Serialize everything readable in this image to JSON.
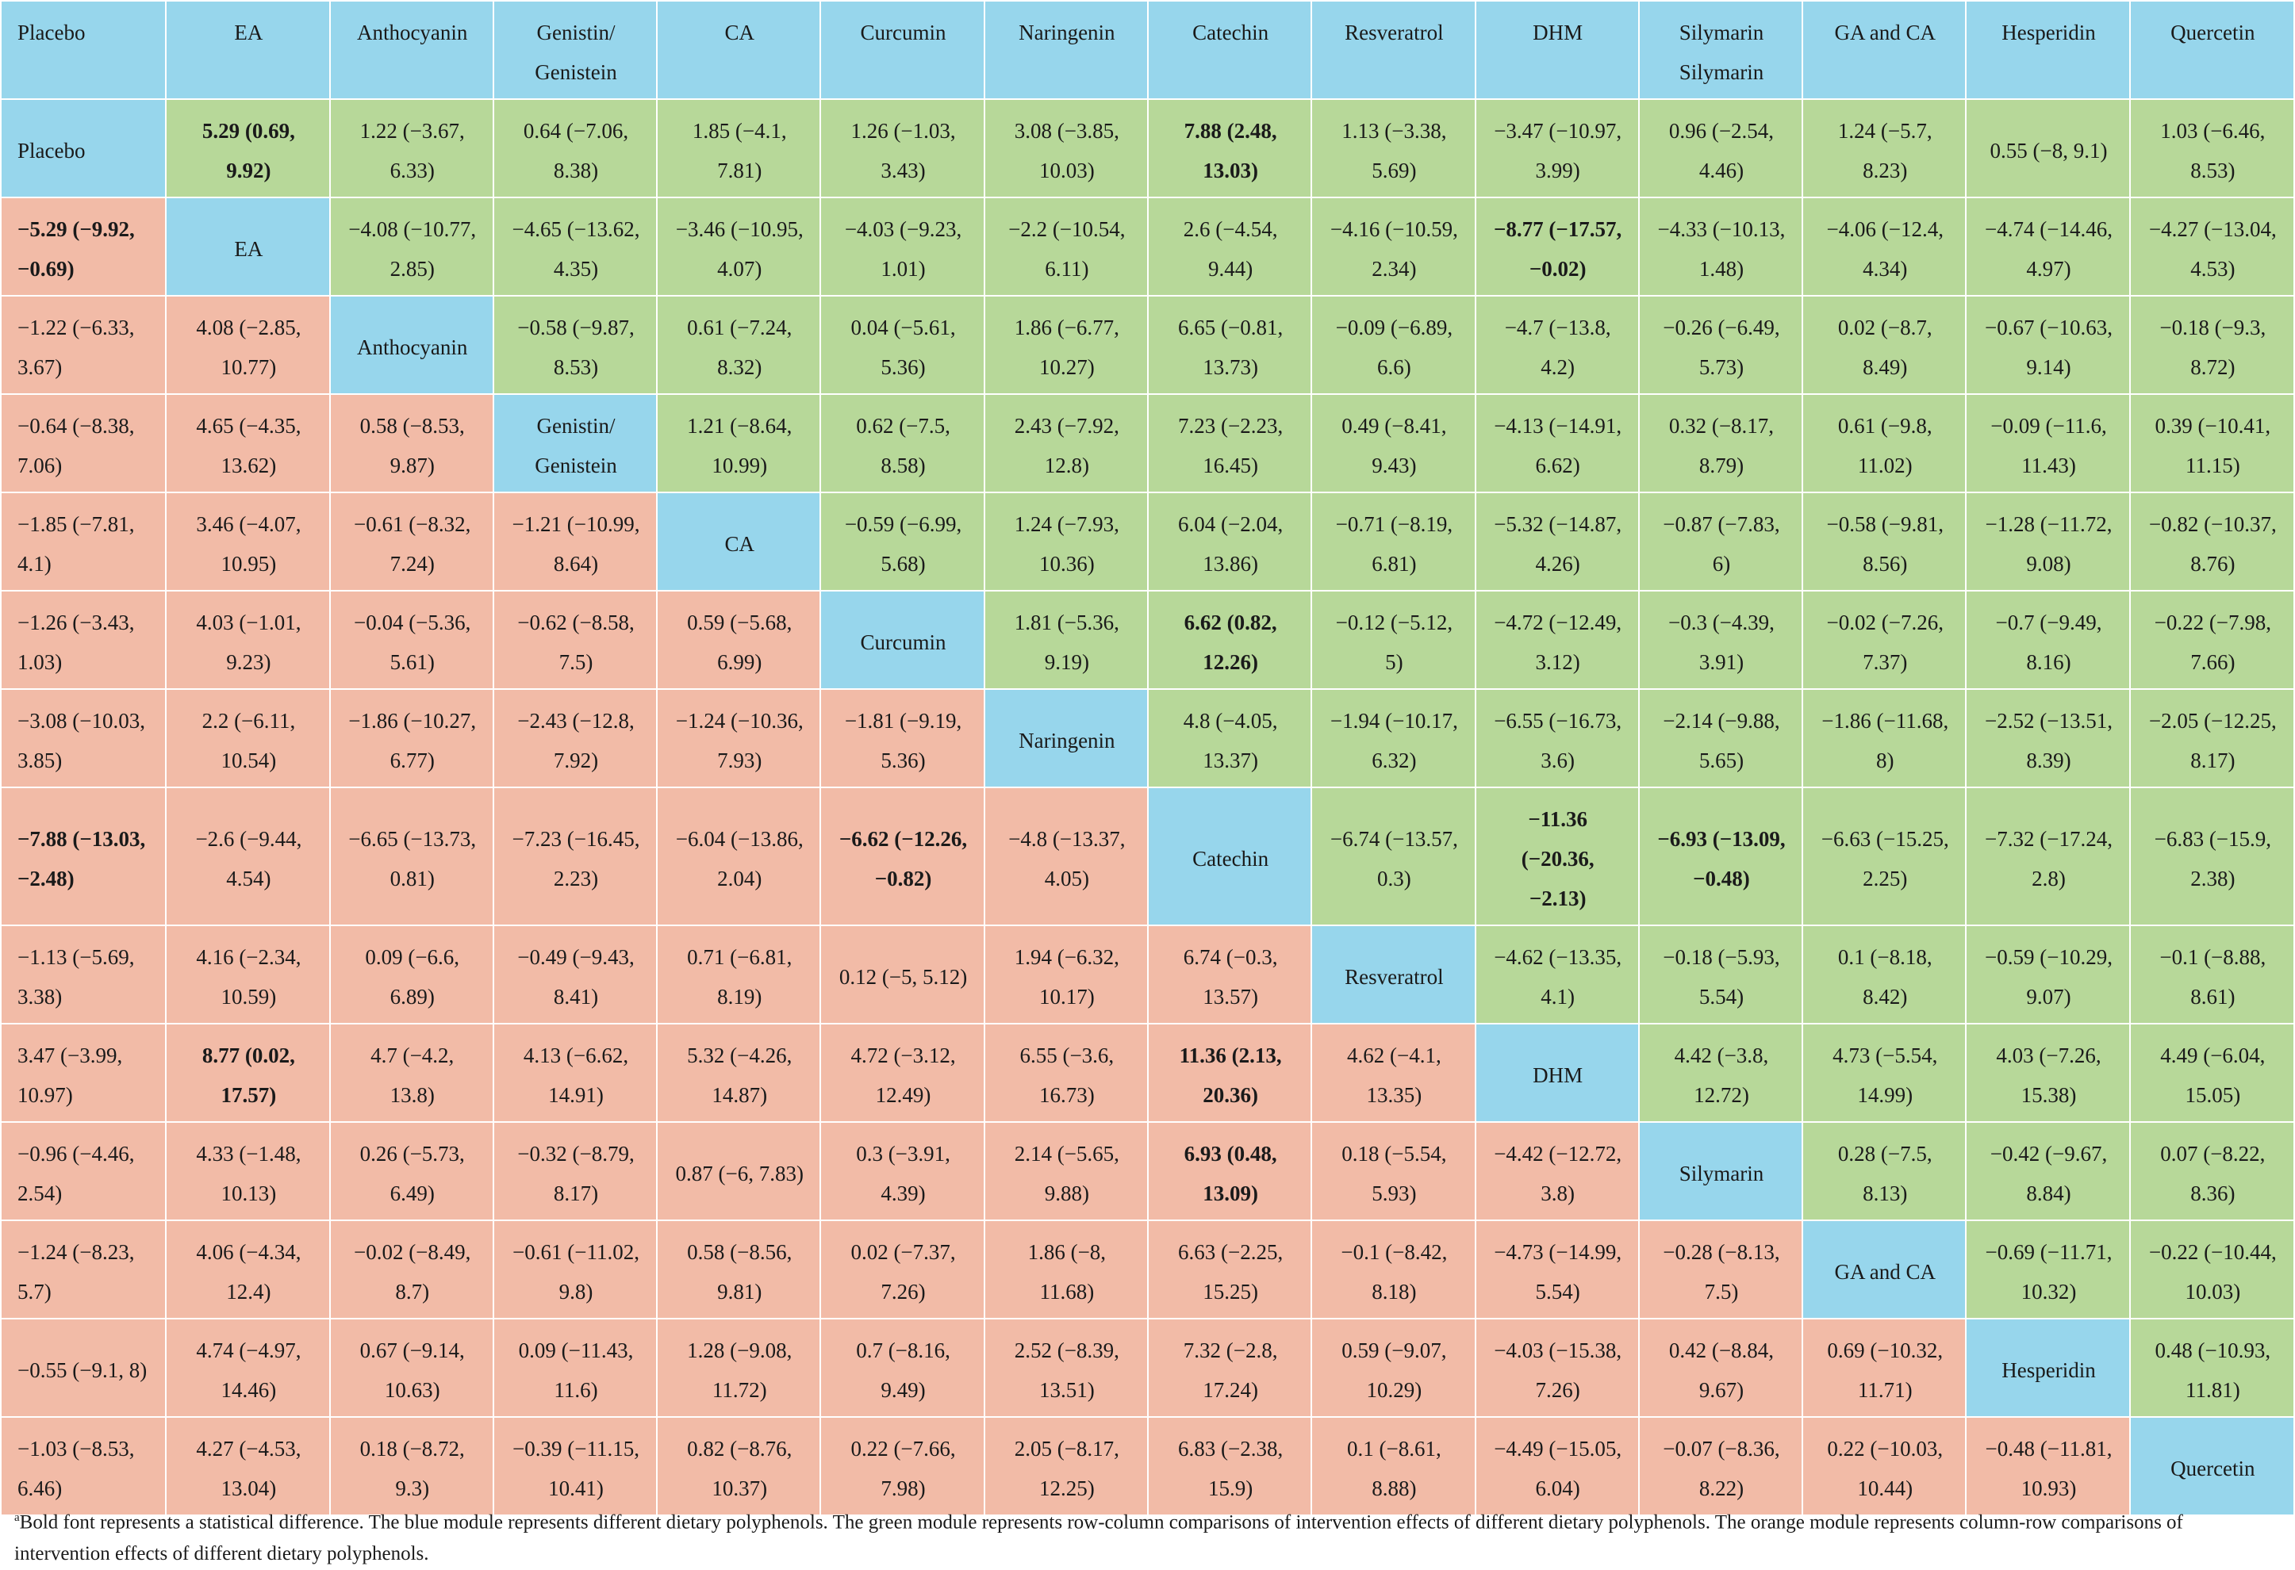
{
  "headers": [
    "Placebo",
    "EA",
    "Anthocyanin",
    "Genistin/ Genistein",
    "CA",
    "Curcumin",
    "Naringenin",
    "Catechin",
    "Resveratrol",
    "DHM",
    "Silymarin Silymarin",
    "GA and CA",
    "Hesperidin",
    "Quercetin"
  ],
  "rows": [
    [
      {
        "t": "Placebo",
        "c": "diag",
        "f": 1
      },
      {
        "t": "5.29 (0.69, 9.92)",
        "c": "upper",
        "b": 1
      },
      {
        "t": "1.22 (−3.67, 6.33)",
        "c": "upper"
      },
      {
        "t": "0.64 (−7.06, 8.38)",
        "c": "upper"
      },
      {
        "t": "1.85 (−4.1, 7.81)",
        "c": "upper"
      },
      {
        "t": "1.26 (−1.03, 3.43)",
        "c": "upper"
      },
      {
        "t": "3.08 (−3.85, 10.03)",
        "c": "upper"
      },
      {
        "t": "7.88 (2.48, 13.03)",
        "c": "upper",
        "b": 1
      },
      {
        "t": "1.13 (−3.38, 5.69)",
        "c": "upper"
      },
      {
        "t": "−3.47 (−10.97, 3.99)",
        "c": "upper"
      },
      {
        "t": "0.96 (−2.54, 4.46)",
        "c": "upper"
      },
      {
        "t": "1.24 (−5.7, 8.23)",
        "c": "upper"
      },
      {
        "t": "0.55 (−8, 9.1)",
        "c": "upper"
      },
      {
        "t": "1.03 (−6.46, 8.53)",
        "c": "upper"
      }
    ],
    [
      {
        "t": "−5.29 (−9.92, −0.69)",
        "c": "lower",
        "f": 1,
        "b": 1
      },
      {
        "t": "EA",
        "c": "diag"
      },
      {
        "t": "−4.08 (−10.77, 2.85)",
        "c": "upper"
      },
      {
        "t": "−4.65 (−13.62, 4.35)",
        "c": "upper"
      },
      {
        "t": "−3.46 (−10.95, 4.07)",
        "c": "upper"
      },
      {
        "t": "−4.03 (−9.23, 1.01)",
        "c": "upper"
      },
      {
        "t": "−2.2 (−10.54, 6.11)",
        "c": "upper"
      },
      {
        "t": "2.6 (−4.54, 9.44)",
        "c": "upper"
      },
      {
        "t": "−4.16 (−10.59, 2.34)",
        "c": "upper"
      },
      {
        "t": "−8.77 (−17.57, −0.02)",
        "c": "upper",
        "b": 1
      },
      {
        "t": "−4.33 (−10.13, 1.48)",
        "c": "upper"
      },
      {
        "t": "−4.06 (−12.4, 4.34)",
        "c": "upper"
      },
      {
        "t": "−4.74 (−14.46, 4.97)",
        "c": "upper"
      },
      {
        "t": "−4.27 (−13.04, 4.53)",
        "c": "upper"
      }
    ],
    [
      {
        "t": "−1.22 (−6.33, 3.67)",
        "c": "lower",
        "f": 1
      },
      {
        "t": "4.08 (−2.85, 10.77)",
        "c": "lower"
      },
      {
        "t": "Anthocyanin",
        "c": "diag"
      },
      {
        "t": "−0.58 (−9.87, 8.53)",
        "c": "upper"
      },
      {
        "t": "0.61 (−7.24, 8.32)",
        "c": "upper"
      },
      {
        "t": "0.04 (−5.61, 5.36)",
        "c": "upper"
      },
      {
        "t": "1.86 (−6.77, 10.27)",
        "c": "upper"
      },
      {
        "t": "6.65 (−0.81, 13.73)",
        "c": "upper"
      },
      {
        "t": "−0.09 (−6.89, 6.6)",
        "c": "upper"
      },
      {
        "t": "−4.7 (−13.8, 4.2)",
        "c": "upper"
      },
      {
        "t": "−0.26 (−6.49, 5.73)",
        "c": "upper"
      },
      {
        "t": "0.02 (−8.7, 8.49)",
        "c": "upper"
      },
      {
        "t": "−0.67 (−10.63, 9.14)",
        "c": "upper"
      },
      {
        "t": "−0.18 (−9.3, 8.72)",
        "c": "upper"
      }
    ],
    [
      {
        "t": "−0.64 (−8.38, 7.06)",
        "c": "lower",
        "f": 1
      },
      {
        "t": "4.65 (−4.35, 13.62)",
        "c": "lower"
      },
      {
        "t": "0.58 (−8.53, 9.87)",
        "c": "lower"
      },
      {
        "t": "Genistin/ Genistein",
        "c": "diag"
      },
      {
        "t": "1.21 (−8.64, 10.99)",
        "c": "upper"
      },
      {
        "t": "0.62 (−7.5, 8.58)",
        "c": "upper"
      },
      {
        "t": "2.43 (−7.92, 12.8)",
        "c": "upper"
      },
      {
        "t": "7.23 (−2.23, 16.45)",
        "c": "upper"
      },
      {
        "t": "0.49 (−8.41, 9.43)",
        "c": "upper"
      },
      {
        "t": "−4.13 (−14.91, 6.62)",
        "c": "upper"
      },
      {
        "t": "0.32 (−8.17, 8.79)",
        "c": "upper"
      },
      {
        "t": "0.61 (−9.8, 11.02)",
        "c": "upper"
      },
      {
        "t": "−0.09 (−11.6, 11.43)",
        "c": "upper"
      },
      {
        "t": "0.39 (−10.41, 11.15)",
        "c": "upper"
      }
    ],
    [
      {
        "t": "−1.85 (−7.81, 4.1)",
        "c": "lower",
        "f": 1
      },
      {
        "t": "3.46 (−4.07, 10.95)",
        "c": "lower"
      },
      {
        "t": "−0.61 (−8.32, 7.24)",
        "c": "lower"
      },
      {
        "t": "−1.21 (−10.99, 8.64)",
        "c": "lower"
      },
      {
        "t": "CA",
        "c": "diag"
      },
      {
        "t": "−0.59 (−6.99, 5.68)",
        "c": "upper"
      },
      {
        "t": "1.24 (−7.93, 10.36)",
        "c": "upper"
      },
      {
        "t": "6.04 (−2.04, 13.86)",
        "c": "upper"
      },
      {
        "t": "−0.71 (−8.19, 6.81)",
        "c": "upper"
      },
      {
        "t": "−5.32 (−14.87, 4.26)",
        "c": "upper"
      },
      {
        "t": "−0.87 (−7.83, 6)",
        "c": "upper"
      },
      {
        "t": "−0.58 (−9.81, 8.56)",
        "c": "upper"
      },
      {
        "t": "−1.28 (−11.72, 9.08)",
        "c": "upper"
      },
      {
        "t": "−0.82 (−10.37, 8.76)",
        "c": "upper"
      }
    ],
    [
      {
        "t": "−1.26 (−3.43, 1.03)",
        "c": "lower",
        "f": 1
      },
      {
        "t": "4.03 (−1.01, 9.23)",
        "c": "lower"
      },
      {
        "t": "−0.04 (−5.36, 5.61)",
        "c": "lower"
      },
      {
        "t": "−0.62 (−8.58, 7.5)",
        "c": "lower"
      },
      {
        "t": "0.59 (−5.68, 6.99)",
        "c": "lower"
      },
      {
        "t": "Curcumin",
        "c": "diag"
      },
      {
        "t": "1.81 (−5.36, 9.19)",
        "c": "upper"
      },
      {
        "t": "6.62 (0.82, 12.26)",
        "c": "upper",
        "b": 1
      },
      {
        "t": "−0.12 (−5.12, 5)",
        "c": "upper"
      },
      {
        "t": "−4.72 (−12.49, 3.12)",
        "c": "upper"
      },
      {
        "t": "−0.3 (−4.39, 3.91)",
        "c": "upper"
      },
      {
        "t": "−0.02 (−7.26, 7.37)",
        "c": "upper"
      },
      {
        "t": "−0.7 (−9.49, 8.16)",
        "c": "upper"
      },
      {
        "t": "−0.22 (−7.98, 7.66)",
        "c": "upper"
      }
    ],
    [
      {
        "t": "−3.08 (−10.03, 3.85)",
        "c": "lower",
        "f": 1
      },
      {
        "t": "2.2 (−6.11, 10.54)",
        "c": "lower"
      },
      {
        "t": "−1.86 (−10.27, 6.77)",
        "c": "lower"
      },
      {
        "t": "−2.43 (−12.8, 7.92)",
        "c": "lower"
      },
      {
        "t": "−1.24 (−10.36, 7.93)",
        "c": "lower"
      },
      {
        "t": "−1.81 (−9.19, 5.36)",
        "c": "lower"
      },
      {
        "t": "Naringenin",
        "c": "diag"
      },
      {
        "t": "4.8 (−4.05, 13.37)",
        "c": "upper"
      },
      {
        "t": "−1.94 (−10.17, 6.32)",
        "c": "upper"
      },
      {
        "t": "−6.55 (−16.73, 3.6)",
        "c": "upper"
      },
      {
        "t": "−2.14 (−9.88, 5.65)",
        "c": "upper"
      },
      {
        "t": "−1.86 (−11.68, 8)",
        "c": "upper"
      },
      {
        "t": "−2.52 (−13.51, 8.39)",
        "c": "upper"
      },
      {
        "t": "−2.05 (−12.25, 8.17)",
        "c": "upper"
      }
    ],
    [
      {
        "t": "−7.88 (−13.03, −2.48)",
        "c": "lower",
        "f": 1,
        "b": 1
      },
      {
        "t": "−2.6 (−9.44, 4.54)",
        "c": "lower"
      },
      {
        "t": "−6.65 (−13.73, 0.81)",
        "c": "lower"
      },
      {
        "t": "−7.23 (−16.45, 2.23)",
        "c": "lower"
      },
      {
        "t": "−6.04 (−13.86, 2.04)",
        "c": "lower"
      },
      {
        "t": "−6.62 (−12.26, −0.82)",
        "c": "lower",
        "b": 1
      },
      {
        "t": "−4.8 (−13.37, 4.05)",
        "c": "lower"
      },
      {
        "t": "Catechin",
        "c": "diag"
      },
      {
        "t": "−6.74 (−13.57, 0.3)",
        "c": "upper"
      },
      {
        "t": "−11.36 (−20.36, −2.13)",
        "c": "upper",
        "b": 1
      },
      {
        "t": "−6.93 (−13.09, −0.48)",
        "c": "upper",
        "b": 1
      },
      {
        "t": "−6.63 (−15.25, 2.25)",
        "c": "upper"
      },
      {
        "t": "−7.32 (−17.24, 2.8)",
        "c": "upper"
      },
      {
        "t": "−6.83 (−15.9, 2.38)",
        "c": "upper"
      }
    ],
    [
      {
        "t": "−1.13 (−5.69, 3.38)",
        "c": "lower",
        "f": 1
      },
      {
        "t": "4.16 (−2.34, 10.59)",
        "c": "lower"
      },
      {
        "t": "0.09 (−6.6, 6.89)",
        "c": "lower"
      },
      {
        "t": "−0.49 (−9.43, 8.41)",
        "c": "lower"
      },
      {
        "t": "0.71 (−6.81, 8.19)",
        "c": "lower"
      },
      {
        "t": "0.12 (−5, 5.12)",
        "c": "lower"
      },
      {
        "t": "1.94 (−6.32, 10.17)",
        "c": "lower"
      },
      {
        "t": "6.74 (−0.3, 13.57)",
        "c": "lower"
      },
      {
        "t": "Resveratrol",
        "c": "diag"
      },
      {
        "t": "−4.62 (−13.35, 4.1)",
        "c": "upper"
      },
      {
        "t": "−0.18 (−5.93, 5.54)",
        "c": "upper"
      },
      {
        "t": "0.1 (−8.18, 8.42)",
        "c": "upper"
      },
      {
        "t": "−0.59 (−10.29, 9.07)",
        "c": "upper"
      },
      {
        "t": "−0.1 (−8.88, 8.61)",
        "c": "upper"
      }
    ],
    [
      {
        "t": "3.47 (−3.99, 10.97)",
        "c": "lower",
        "f": 1
      },
      {
        "t": "8.77 (0.02, 17.57)",
        "c": "lower",
        "b": 1
      },
      {
        "t": "4.7 (−4.2, 13.8)",
        "c": "lower"
      },
      {
        "t": "4.13 (−6.62, 14.91)",
        "c": "lower"
      },
      {
        "t": "5.32 (−4.26, 14.87)",
        "c": "lower"
      },
      {
        "t": "4.72 (−3.12, 12.49)",
        "c": "lower"
      },
      {
        "t": "6.55 (−3.6, 16.73)",
        "c": "lower"
      },
      {
        "t": "11.36 (2.13, 20.36)",
        "c": "lower",
        "b": 1
      },
      {
        "t": "4.62 (−4.1, 13.35)",
        "c": "lower"
      },
      {
        "t": "DHM",
        "c": "diag"
      },
      {
        "t": "4.42 (−3.8, 12.72)",
        "c": "upper"
      },
      {
        "t": "4.73 (−5.54, 14.99)",
        "c": "upper"
      },
      {
        "t": "4.03 (−7.26, 15.38)",
        "c": "upper"
      },
      {
        "t": "4.49 (−6.04, 15.05)",
        "c": "upper"
      }
    ],
    [
      {
        "t": "−0.96 (−4.46, 2.54)",
        "c": "lower",
        "f": 1
      },
      {
        "t": "4.33 (−1.48, 10.13)",
        "c": "lower"
      },
      {
        "t": "0.26 (−5.73, 6.49)",
        "c": "lower"
      },
      {
        "t": "−0.32 (−8.79, 8.17)",
        "c": "lower"
      },
      {
        "t": "0.87 (−6, 7.83)",
        "c": "lower"
      },
      {
        "t": "0.3 (−3.91, 4.39)",
        "c": "lower"
      },
      {
        "t": "2.14 (−5.65, 9.88)",
        "c": "lower"
      },
      {
        "t": "6.93 (0.48, 13.09)",
        "c": "lower",
        "b": 1
      },
      {
        "t": "0.18 (−5.54, 5.93)",
        "c": "lower"
      },
      {
        "t": "−4.42 (−12.72, 3.8)",
        "c": "lower"
      },
      {
        "t": "Silymarin",
        "c": "diag"
      },
      {
        "t": "0.28 (−7.5, 8.13)",
        "c": "upper"
      },
      {
        "t": "−0.42 (−9.67, 8.84)",
        "c": "upper"
      },
      {
        "t": "0.07 (−8.22, 8.36)",
        "c": "upper"
      }
    ],
    [
      {
        "t": "−1.24 (−8.23, 5.7)",
        "c": "lower",
        "f": 1
      },
      {
        "t": "4.06 (−4.34, 12.4)",
        "c": "lower"
      },
      {
        "t": "−0.02 (−8.49, 8.7)",
        "c": "lower"
      },
      {
        "t": "−0.61 (−11.02, 9.8)",
        "c": "lower"
      },
      {
        "t": "0.58 (−8.56, 9.81)",
        "c": "lower"
      },
      {
        "t": "0.02 (−7.37, 7.26)",
        "c": "lower"
      },
      {
        "t": "1.86 (−8, 11.68)",
        "c": "lower"
      },
      {
        "t": "6.63 (−2.25, 15.25)",
        "c": "lower"
      },
      {
        "t": "−0.1 (−8.42, 8.18)",
        "c": "lower"
      },
      {
        "t": "−4.73 (−14.99, 5.54)",
        "c": "lower"
      },
      {
        "t": "−0.28 (−8.13, 7.5)",
        "c": "lower"
      },
      {
        "t": "GA and CA",
        "c": "diag"
      },
      {
        "t": "−0.69 (−11.71, 10.32)",
        "c": "upper"
      },
      {
        "t": "−0.22 (−10.44, 10.03)",
        "c": "upper"
      }
    ],
    [
      {
        "t": "−0.55 (−9.1, 8)",
        "c": "lower",
        "f": 1
      },
      {
        "t": "4.74 (−4.97, 14.46)",
        "c": "lower"
      },
      {
        "t": "0.67 (−9.14, 10.63)",
        "c": "lower"
      },
      {
        "t": "0.09 (−11.43, 11.6)",
        "c": "lower"
      },
      {
        "t": "1.28 (−9.08, 11.72)",
        "c": "lower"
      },
      {
        "t": "0.7 (−8.16, 9.49)",
        "c": "lower"
      },
      {
        "t": "2.52 (−8.39, 13.51)",
        "c": "lower"
      },
      {
        "t": "7.32 (−2.8, 17.24)",
        "c": "lower"
      },
      {
        "t": "0.59 (−9.07, 10.29)",
        "c": "lower"
      },
      {
        "t": "−4.03 (−15.38, 7.26)",
        "c": "lower"
      },
      {
        "t": "0.42 (−8.84, 9.67)",
        "c": "lower"
      },
      {
        "t": "0.69 (−10.32, 11.71)",
        "c": "lower"
      },
      {
        "t": "Hesperidin",
        "c": "diag"
      },
      {
        "t": "0.48 (−10.93, 11.81)",
        "c": "upper"
      }
    ],
    [
      {
        "t": "−1.03 (−8.53, 6.46)",
        "c": "lower",
        "f": 1
      },
      {
        "t": "4.27 (−4.53, 13.04)",
        "c": "lower"
      },
      {
        "t": "0.18 (−8.72, 9.3)",
        "c": "lower"
      },
      {
        "t": "−0.39 (−11.15, 10.41)",
        "c": "lower"
      },
      {
        "t": "0.82 (−8.76, 10.37)",
        "c": "lower"
      },
      {
        "t": "0.22 (−7.66, 7.98)",
        "c": "lower"
      },
      {
        "t": "2.05 (−8.17, 12.25)",
        "c": "lower"
      },
      {
        "t": "6.83 (−2.38, 15.9)",
        "c": "lower"
      },
      {
        "t": "0.1 (−8.61, 8.88)",
        "c": "lower"
      },
      {
        "t": "−4.49 (−15.05, 6.04)",
        "c": "lower"
      },
      {
        "t": "−0.07 (−8.36, 8.22)",
        "c": "lower"
      },
      {
        "t": "0.22 (−10.03, 10.44)",
        "c": "lower"
      },
      {
        "t": "−0.48 (−11.81, 10.93)",
        "c": "lower"
      },
      {
        "t": "Quercetin",
        "c": "diag"
      }
    ]
  ],
  "footnote": {
    "marker": "a",
    "text": "Bold font represents a statistical difference. The blue module represents different dietary polyphenols. The green module represents row-column comparisons of intervention effects of different dietary polyphenols. The orange module represents column-row comparisons of intervention effects of different dietary polyphenols."
  },
  "colors": {
    "diagonal": "#97d6ec",
    "upper": "#b7d899",
    "lower": "#f2bba7"
  }
}
